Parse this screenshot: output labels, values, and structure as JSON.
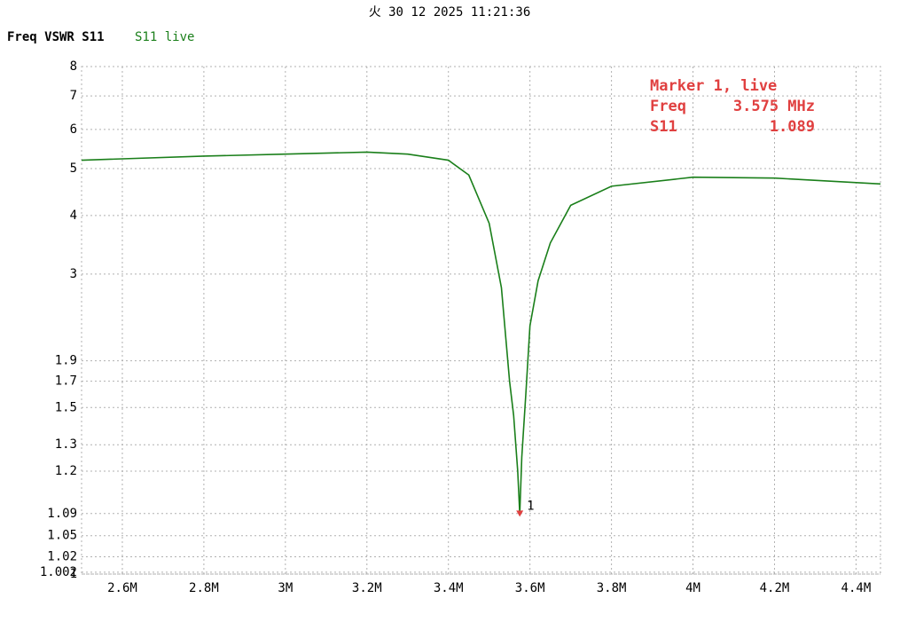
{
  "header": {
    "datetime": "火 30 12 2025 11:21:36",
    "chart_label": "Freq VSWR S11"
  },
  "chart_data": {
    "type": "line",
    "x": [
      2500000,
      2800000,
      3000000,
      3200000,
      3300000,
      3400000,
      3450000,
      3500000,
      3530000,
      3550000,
      3560000,
      3570000,
      3575000,
      3580000,
      3590000,
      3600000,
      3620000,
      3650000,
      3700000,
      3800000,
      4000000,
      4200000,
      4460000
    ],
    "series": [
      {
        "name": "S11 live",
        "color": "#1a7f1a",
        "values": [
          5.2,
          5.3,
          5.35,
          5.4,
          5.35,
          5.2,
          4.85,
          3.85,
          2.8,
          1.7,
          1.45,
          1.2,
          1.089,
          1.25,
          1.6,
          2.3,
          2.9,
          3.5,
          4.2,
          4.6,
          4.8,
          4.78,
          4.65
        ]
      }
    ],
    "xlim": [
      2500000,
      4460000
    ],
    "xticks": [
      {
        "value": 2600000,
        "label": "2.6M"
      },
      {
        "value": 2800000,
        "label": "2.8M"
      },
      {
        "value": 3000000,
        "label": "3M"
      },
      {
        "value": 3200000,
        "label": "3.2M"
      },
      {
        "value": 3400000,
        "label": "3.4M"
      },
      {
        "value": 3600000,
        "label": "3.6M"
      },
      {
        "value": 3800000,
        "label": "3.8M"
      },
      {
        "value": 4000000,
        "label": "4M"
      },
      {
        "value": 4200000,
        "label": "4.2M"
      },
      {
        "value": 4400000,
        "label": "4.4M"
      }
    ],
    "ylim": [
      1,
      8
    ],
    "yticks": [
      8,
      7,
      6,
      5,
      4,
      3,
      1.9,
      1.7,
      1.5,
      1.3,
      1.2,
      1.09,
      1.05,
      1.02,
      1.002,
      1
    ],
    "grid": true,
    "marker": {
      "label": "1",
      "x": 3575000,
      "y": 1.089,
      "color": "#e04040",
      "title": "Marker 1, live",
      "rows": [
        [
          "Freq",
          "3.575 MHz"
        ],
        [
          "S11",
          "1.089"
        ]
      ]
    }
  }
}
